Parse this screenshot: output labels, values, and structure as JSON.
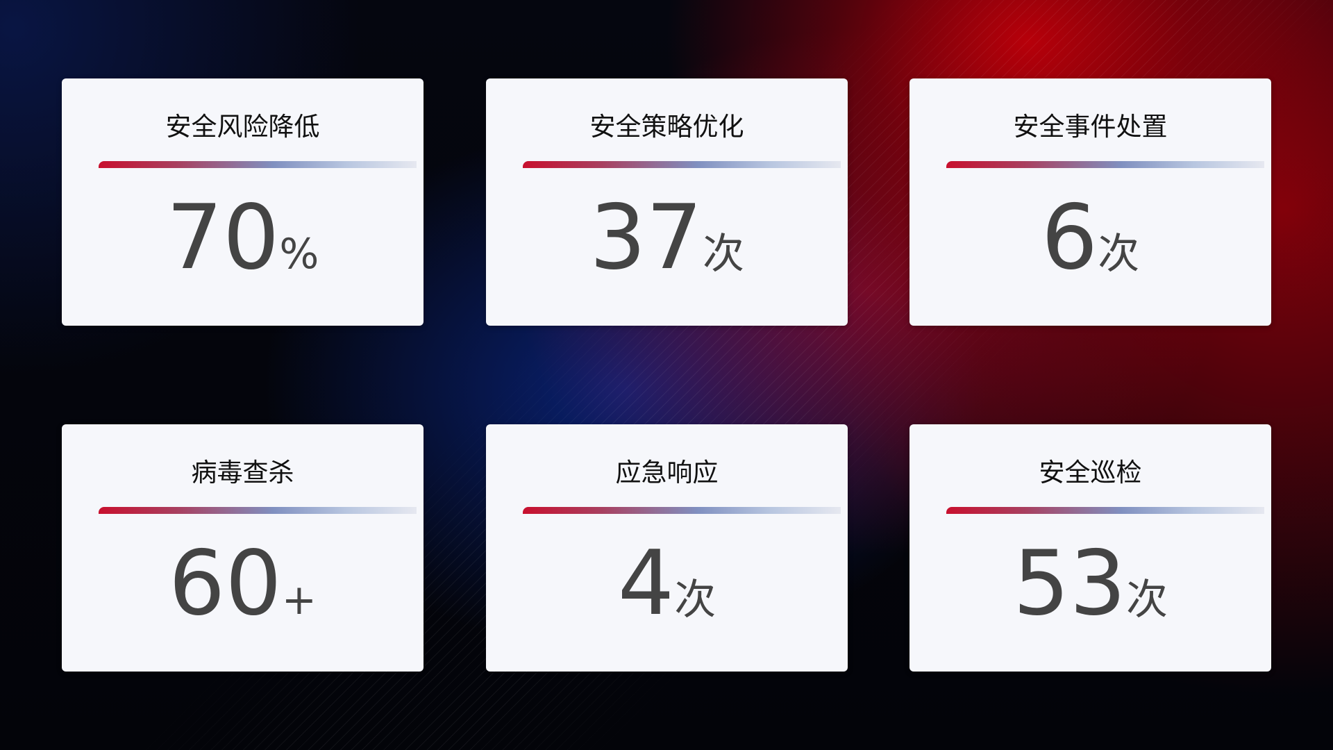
{
  "cards": [
    {
      "title": "安全风险降低",
      "value": "70",
      "unit": "%"
    },
    {
      "title": "安全策略优化",
      "value": "37",
      "unit": "次"
    },
    {
      "title": "安全事件处置",
      "value": "6",
      "unit": "次"
    },
    {
      "title": "病毒查杀",
      "value": "60",
      "unit": "+"
    },
    {
      "title": "应急响应",
      "value": "4",
      "unit": "次"
    },
    {
      "title": "安全巡检",
      "value": "53",
      "unit": "次"
    }
  ],
  "colors": {
    "accent_red": "#c8102e",
    "accent_blue": "#8090c0",
    "card_bg": "#f6f7fb",
    "number": "#444444"
  }
}
